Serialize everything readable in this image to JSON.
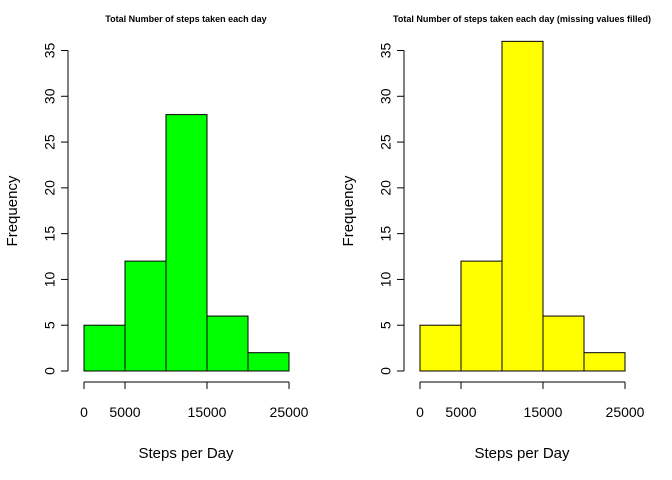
{
  "chart_data": [
    {
      "type": "bar",
      "title": "Total Number of steps taken each day",
      "xlabel": "Steps per Day",
      "ylabel": "Frequency",
      "bins": [
        [
          0,
          5000
        ],
        [
          5000,
          10000
        ],
        [
          10000,
          15000
        ],
        [
          15000,
          20000
        ],
        [
          20000,
          25000
        ]
      ],
      "values": [
        5,
        12,
        28,
        6,
        2
      ],
      "color": "#00ff00",
      "xticks": [
        0,
        5000,
        15000,
        25000
      ],
      "yticks": [
        0,
        5,
        10,
        15,
        20,
        25,
        30,
        35
      ],
      "xlim": [
        0,
        25000
      ],
      "ylim": [
        0,
        35
      ]
    },
    {
      "type": "bar",
      "title": "Total Number of steps taken each day (missing values filled)",
      "xlabel": "Steps per Day",
      "ylabel": "Frequency",
      "bins": [
        [
          0,
          5000
        ],
        [
          5000,
          10000
        ],
        [
          10000,
          15000
        ],
        [
          15000,
          20000
        ],
        [
          20000,
          25000
        ]
      ],
      "values": [
        5,
        12,
        36,
        6,
        2
      ],
      "color": "#ffff00",
      "xticks": [
        0,
        5000,
        15000,
        25000
      ],
      "yticks": [
        0,
        5,
        10,
        15,
        20,
        25,
        30,
        35
      ],
      "xlim": [
        0,
        25000
      ],
      "ylim": [
        0,
        35
      ]
    }
  ]
}
